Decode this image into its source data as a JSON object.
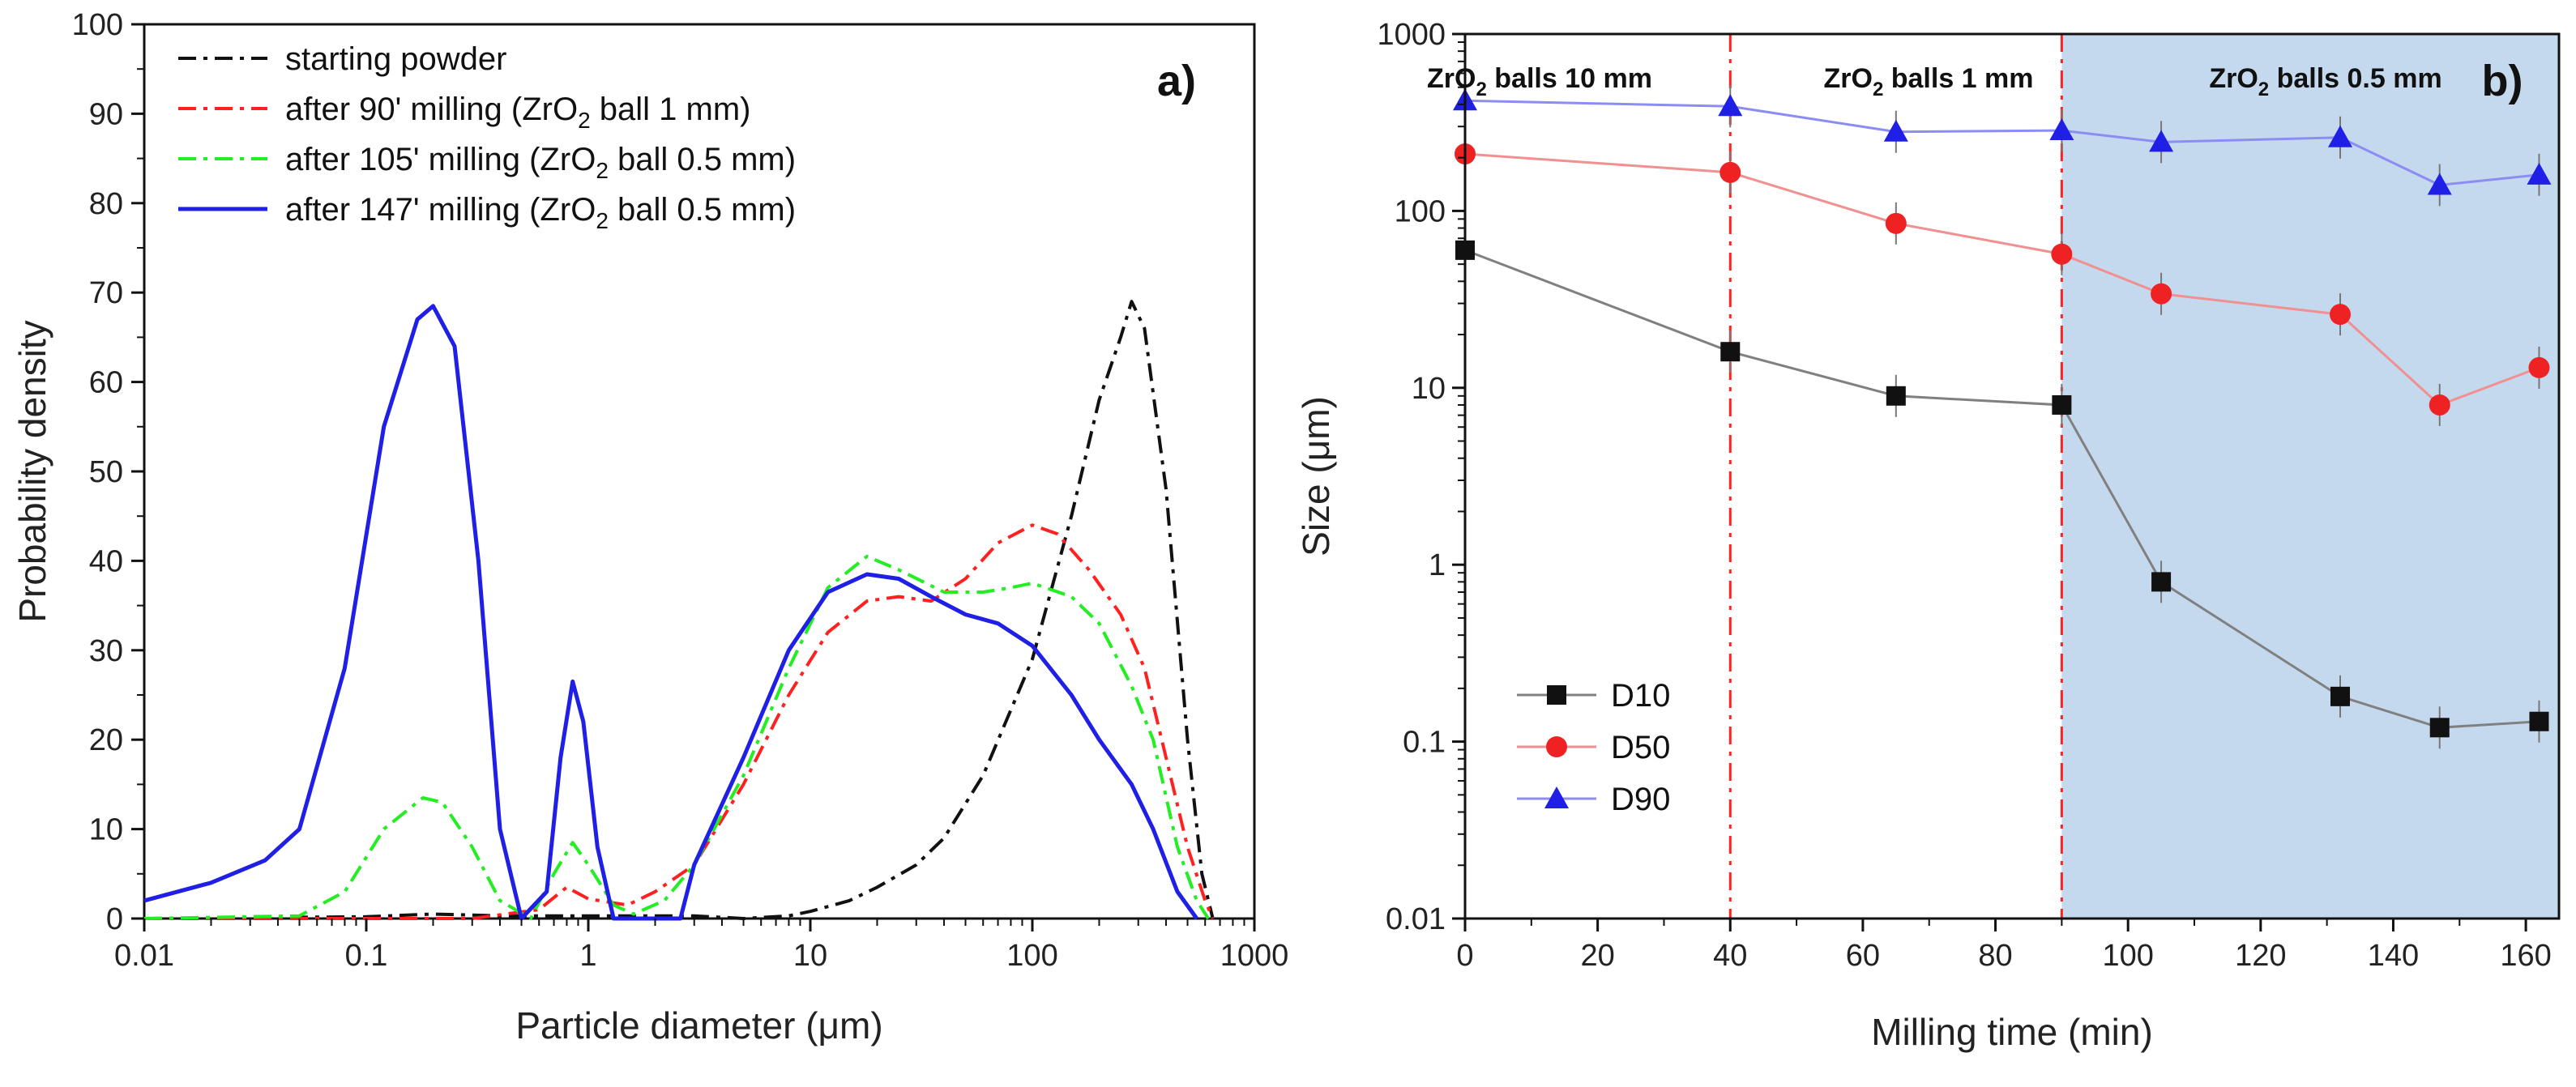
{
  "chart_data": [
    {
      "type": "line",
      "panel_label": "a)",
      "xlabel": "Particle diameter (μm)",
      "ylabel": "Probability density",
      "xscale": "log",
      "xlim": [
        0.01,
        1000
      ],
      "ylim": [
        0,
        100
      ],
      "xtick_labels": [
        "0.01",
        "0.1",
        "1",
        "10",
        "100",
        "1000"
      ],
      "xtick_values": [
        0.01,
        0.1,
        1,
        10,
        100,
        1000
      ],
      "yticks": [
        0,
        10,
        20,
        30,
        40,
        50,
        60,
        70,
        80,
        90,
        100
      ],
      "legend_position": "top-left",
      "series": [
        {
          "name": "starting powder",
          "legend_main": "starting powder",
          "legend_sub": "",
          "legend_tail": "",
          "color": "#111111",
          "dash": "dashdot",
          "points": [
            [
              0.01,
              0
            ],
            [
              0.1,
              0.2
            ],
            [
              0.2,
              0.5
            ],
            [
              0.4,
              0.3
            ],
            [
              1,
              0.3
            ],
            [
              3,
              0.3
            ],
            [
              5,
              0
            ],
            [
              8,
              0.3
            ],
            [
              10,
              0.8
            ],
            [
              15,
              2
            ],
            [
              20,
              3.5
            ],
            [
              30,
              6
            ],
            [
              40,
              9
            ],
            [
              60,
              16
            ],
            [
              100,
              29
            ],
            [
              150,
              45
            ],
            [
              200,
              58
            ],
            [
              250,
              65
            ],
            [
              280,
              69
            ],
            [
              320,
              66
            ],
            [
              400,
              48
            ],
            [
              500,
              20
            ],
            [
              580,
              5
            ],
            [
              650,
              0
            ]
          ]
        },
        {
          "name": "after 90' milling (ZrO2 ball 1 mm)",
          "legend_main": "after 90' milling (ZrO",
          "legend_sub": "2",
          "legend_tail": " ball 1 mm)",
          "color": "#ff2020",
          "dash": "dashdot",
          "points": [
            [
              0.01,
              0
            ],
            [
              0.3,
              0
            ],
            [
              0.6,
              1
            ],
            [
              0.8,
              3.5
            ],
            [
              1,
              2.2
            ],
            [
              1.5,
              1.5
            ],
            [
              2,
              3
            ],
            [
              3,
              6
            ],
            [
              5,
              15
            ],
            [
              8,
              25
            ],
            [
              12,
              32
            ],
            [
              18,
              35.5
            ],
            [
              25,
              36
            ],
            [
              35,
              35.5
            ],
            [
              50,
              38
            ],
            [
              70,
              42
            ],
            [
              100,
              44
            ],
            [
              130,
              43
            ],
            [
              180,
              39
            ],
            [
              250,
              34
            ],
            [
              320,
              28
            ],
            [
              400,
              18
            ],
            [
              500,
              8
            ],
            [
              600,
              2
            ],
            [
              650,
              0
            ]
          ]
        },
        {
          "name": "after 105' milling (ZrO2 ball 0.5 mm)",
          "legend_main": "after 105' milling (ZrO",
          "legend_sub": "2",
          "legend_tail": " ball 0.5 mm)",
          "color": "#22ee22",
          "dash": "dashdot",
          "points": [
            [
              0.01,
              0
            ],
            [
              0.05,
              0.3
            ],
            [
              0.08,
              3
            ],
            [
              0.12,
              10
            ],
            [
              0.18,
              13.5
            ],
            [
              0.22,
              13
            ],
            [
              0.3,
              8
            ],
            [
              0.4,
              2
            ],
            [
              0.55,
              0
            ],
            [
              0.7,
              5
            ],
            [
              0.85,
              8.5
            ],
            [
              1,
              6
            ],
            [
              1.3,
              1.5
            ],
            [
              1.6,
              0.5
            ],
            [
              2.2,
              2
            ],
            [
              3,
              6
            ],
            [
              5,
              16
            ],
            [
              8,
              28
            ],
            [
              12,
              37
            ],
            [
              18,
              40.5
            ],
            [
              25,
              39
            ],
            [
              40,
              36.5
            ],
            [
              60,
              36.5
            ],
            [
              80,
              37
            ],
            [
              100,
              37.5
            ],
            [
              150,
              36
            ],
            [
              200,
              33
            ],
            [
              280,
              26
            ],
            [
              350,
              20
            ],
            [
              450,
              8
            ],
            [
              550,
              2
            ],
            [
              620,
              0
            ]
          ]
        },
        {
          "name": "after 147' milling (ZrO2 ball 0.5 mm)",
          "legend_main": "after 147' milling (ZrO",
          "legend_sub": "2",
          "legend_tail": " ball 0.5 mm)",
          "color": "#1f1fe6",
          "dash": "solid",
          "points": [
            [
              0.01,
              2
            ],
            [
              0.02,
              4
            ],
            [
              0.035,
              6.5
            ],
            [
              0.05,
              10
            ],
            [
              0.08,
              28
            ],
            [
              0.12,
              55
            ],
            [
              0.17,
              67
            ],
            [
              0.2,
              68.5
            ],
            [
              0.25,
              64
            ],
            [
              0.32,
              40
            ],
            [
              0.4,
              10
            ],
            [
              0.5,
              0
            ],
            [
              0.65,
              3
            ],
            [
              0.75,
              18
            ],
            [
              0.85,
              26.5
            ],
            [
              0.95,
              22
            ],
            [
              1.1,
              8
            ],
            [
              1.3,
              0
            ],
            [
              2,
              0
            ],
            [
              2.6,
              0
            ],
            [
              3,
              6
            ],
            [
              5,
              18
            ],
            [
              8,
              30
            ],
            [
              12,
              36.5
            ],
            [
              18,
              38.5
            ],
            [
              25,
              38
            ],
            [
              35,
              36
            ],
            [
              50,
              34
            ],
            [
              70,
              33
            ],
            [
              100,
              30.5
            ],
            [
              150,
              25
            ],
            [
              200,
              20
            ],
            [
              280,
              15
            ],
            [
              350,
              10
            ],
            [
              450,
              3
            ],
            [
              550,
              0
            ]
          ]
        }
      ]
    },
    {
      "type": "line",
      "panel_label": "b)",
      "xlabel": "Milling time (min)",
      "ylabel": "Size (μm)",
      "yscale": "log",
      "xlim": [
        0,
        165
      ],
      "ylim": [
        0.01,
        1000
      ],
      "xticks": [
        0,
        20,
        40,
        60,
        80,
        100,
        120,
        140,
        160
      ],
      "ytick_labels": [
        "0.01",
        "0.1",
        "1",
        "10",
        "100",
        "1000"
      ],
      "ytick_values": [
        0.01,
        0.1,
        1,
        10,
        100,
        1000
      ],
      "legend_position": "bottom-left",
      "vlines": [
        40,
        90
      ],
      "vline_color": "#ff2020",
      "shaded_region": {
        "from": 90,
        "to": 165,
        "color": "#c5d9ee"
      },
      "zones": [
        {
          "label_main": "ZrO",
          "label_sub": "2",
          "label_tail": " balls 10 mm",
          "x_from": 0,
          "x_to": 40
        },
        {
          "label_main": "ZrO",
          "label_sub": "2",
          "label_tail": " balls 1 mm",
          "x_from": 40,
          "x_to": 90
        },
        {
          "label_main": "ZrO",
          "label_sub": "2",
          "label_tail": " balls 0.5 mm",
          "x_from": 90,
          "x_to": 165
        }
      ],
      "series": [
        {
          "name": "D10",
          "color": "#808080",
          "marker": "square",
          "marker_color": "#111111",
          "x": [
            0,
            40,
            65,
            90,
            105,
            132,
            147,
            162
          ],
          "y": [
            60,
            16,
            9,
            8,
            0.8,
            0.18,
            0.12,
            0.13
          ]
        },
        {
          "name": "D50",
          "color": "#f09090",
          "marker": "circle",
          "marker_color": "#ee2222",
          "x": [
            0,
            40,
            65,
            90,
            105,
            132,
            147,
            162
          ],
          "y": [
            210,
            165,
            85,
            57,
            34,
            26,
            8,
            13
          ]
        },
        {
          "name": "D90",
          "color": "#8c8cf5",
          "marker": "triangle",
          "marker_color": "#1f1fe6",
          "x": [
            0,
            40,
            65,
            90,
            105,
            132,
            147,
            162
          ],
          "y": [
            420,
            390,
            280,
            285,
            245,
            260,
            140,
            160
          ]
        }
      ]
    }
  ]
}
